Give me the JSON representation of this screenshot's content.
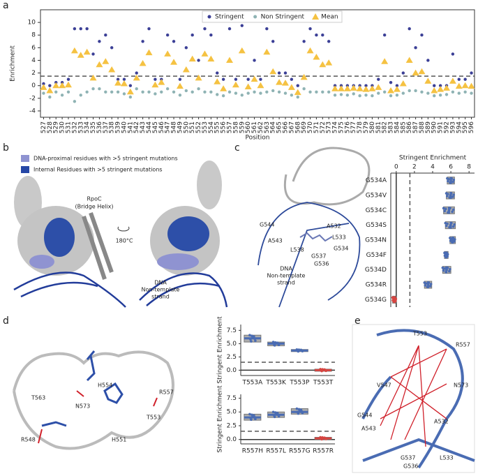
{
  "panel_labels": [
    "a",
    "b",
    "c",
    "d",
    "e"
  ],
  "chart_data": [
    {
      "type": "strip",
      "ylabel": "Enrichment",
      "xlabel": "Position",
      "threshold": 1.5,
      "ylim": [
        -5,
        12
      ],
      "yticks": [
        -4,
        -2,
        0,
        2,
        4,
        6,
        8,
        10
      ],
      "legend": "top-center",
      "categories": [
        "527",
        "528",
        "529",
        "530",
        "531",
        "532",
        "533",
        "534",
        "535",
        "536",
        "537",
        "538",
        "539",
        "540",
        "541",
        "542",
        "543",
        "544",
        "545",
        "546",
        "547",
        "548",
        "549",
        "550",
        "551",
        "552",
        "553",
        "554",
        "555",
        "556",
        "557",
        "558",
        "559",
        "560",
        "561",
        "562",
        "563",
        "564",
        "565",
        "566",
        "567",
        "568",
        "569",
        "570",
        "571",
        "572",
        "573",
        "574",
        "575",
        "576",
        "577",
        "578",
        "579",
        "580",
        "581",
        "582",
        "583",
        "584",
        "585",
        "586",
        "587",
        "588",
        "589",
        "590",
        "591",
        "592",
        "593",
        "594",
        "595",
        "596"
      ],
      "series": [
        {
          "name": "Stringent",
          "color": "#3b3f96",
          "marker": "circle",
          "values": [
            0.3,
            0,
            0.5,
            0.5,
            1,
            9,
            9,
            9,
            5,
            7,
            8,
            6,
            1,
            1,
            0,
            2,
            7,
            9,
            1,
            1,
            8,
            7,
            1,
            6,
            8,
            4,
            9,
            8,
            2,
            1,
            9,
            1,
            9.5,
            1,
            4,
            1,
            9,
            7,
            2,
            2,
            1,
            0,
            7,
            9,
            8,
            8,
            7,
            0,
            0,
            0,
            0,
            0,
            0,
            0,
            1,
            8,
            0.5,
            0,
            2,
            9,
            6,
            8,
            4,
            0,
            0,
            0,
            5,
            1,
            1,
            2
          ]
        },
        {
          "name": "Non Stringent",
          "color": "#8fb3b4",
          "marker": "circle",
          "values": [
            -1.2,
            -1.8,
            -1,
            -1.5,
            -1,
            -2.5,
            -1.5,
            -1,
            -0.5,
            -0.5,
            -1,
            -1,
            -1,
            -1.3,
            -1.8,
            -0.5,
            -1,
            -1,
            -1.3,
            -1,
            -0.5,
            -1,
            -1.5,
            -0.8,
            -1,
            -0.5,
            -1,
            -1,
            -1.4,
            -1.6,
            -1,
            -1.2,
            -1.5,
            -1.2,
            -1,
            -1.2,
            -1,
            -0.8,
            -1,
            -1.2,
            -1.5,
            -1.8,
            -0.5,
            -1,
            -1,
            -1,
            -1,
            -1.5,
            -1.4,
            -1.5,
            -1.3,
            -1.6,
            -1.5,
            -1.6,
            -1.2,
            -1,
            -1.6,
            -1.5,
            -1.2,
            -0.8,
            -0.8,
            -1,
            -1.2,
            -1.6,
            -1.5,
            -1.4,
            -1,
            -1.2,
            -1,
            -1.2
          ]
        },
        {
          "name": "Mean",
          "color": "#f5c242",
          "marker": "triangle",
          "values": [
            -0.3,
            -0.8,
            0,
            0,
            0.1,
            5.5,
            4.8,
            5.3,
            1.2,
            3.3,
            3.8,
            2.5,
            0.4,
            0.3,
            -1,
            1.2,
            3.5,
            5.2,
            0.1,
            0.5,
            5,
            3.7,
            -0.1,
            2.5,
            4.2,
            1.2,
            5,
            4.2,
            0.6,
            -0.5,
            4,
            0.1,
            5.5,
            -0.2,
            1,
            0,
            5.3,
            2.2,
            0.5,
            0.4,
            -0.3,
            -1.1,
            1.3,
            5.5,
            4.5,
            3.3,
            3.6,
            -0.5,
            -0.5,
            -0.5,
            -0.4,
            -0.5,
            -0.6,
            -0.5,
            -0.3,
            3.8,
            -0.8,
            -0.6,
            0.3,
            4,
            2,
            2.2,
            0.7,
            -0.8,
            -0.6,
            -0.4,
            0.7,
            -0.1,
            0,
            -0.1
          ]
        }
      ]
    },
    {
      "type": "box",
      "orientation": "horizontal",
      "xlabel": "Stringent Enrichment",
      "threshold": 1.5,
      "xlim": [
        -0.6,
        8.6
      ],
      "xticks": [
        0,
        2,
        4,
        6,
        8
      ],
      "categories": [
        "G534A",
        "G534V",
        "G534C",
        "G534S",
        "G534N",
        "G534F",
        "G534D",
        "G534R",
        "G534G"
      ],
      "q1": [
        5.6,
        5.5,
        5.2,
        5.4,
        5.9,
        5.3,
        5.1,
        3.1,
        -0.4
      ],
      "median": [
        6,
        6,
        5.8,
        6,
        6.2,
        5.5,
        5.5,
        3.5,
        -0.2
      ],
      "q3": [
        6.4,
        6.4,
        6.4,
        6.5,
        6.5,
        5.7,
        6,
        3.9,
        0
      ],
      "colors": [
        "#4a6cb3",
        "#4a6cb3",
        "#4a6cb3",
        "#4a6cb3",
        "#4a6cb3",
        "#4a6cb3",
        "#4a6cb3",
        "#4a6cb3",
        "#d64541"
      ]
    },
    {
      "type": "box",
      "orientation": "vertical",
      "ylabel": "Stringent Enrichment",
      "threshold": 1.5,
      "ylim": [
        -1,
        8.6
      ],
      "yticks": [
        {
          "value": 0,
          "label": "0.0"
        },
        {
          "value": 2.5,
          "label": "2.5"
        },
        {
          "value": 5,
          "label": "5.0"
        },
        {
          "value": 7.5,
          "label": "7.5"
        }
      ],
      "categories": [
        "T553A",
        "T553K",
        "T553P",
        "T553T"
      ],
      "q1": [
        5.3,
        4.6,
        3.5,
        -0.2
      ],
      "median": [
        6,
        5,
        3.7,
        0
      ],
      "q3": [
        6.6,
        5.3,
        3.9,
        0.2
      ],
      "colors": [
        "#4a6cb3",
        "#4a6cb3",
        "#4a6cb3",
        "#d64541"
      ]
    },
    {
      "type": "box",
      "orientation": "vertical",
      "ylabel": "Stringent Enrichment",
      "threshold": 1.5,
      "ylim": [
        -0.8,
        8.2
      ],
      "yticks": [
        {
          "value": 0,
          "label": "0.0"
        },
        {
          "value": 2.5,
          "label": "2.5"
        },
        {
          "value": 5,
          "label": "5.0"
        },
        {
          "value": 7.5,
          "label": "7.5"
        }
      ],
      "categories": [
        "R557H",
        "R557L",
        "R557G",
        "R557R"
      ],
      "q1": [
        3.5,
        4,
        4.6,
        0
      ],
      "median": [
        4,
        4.5,
        5,
        0.2
      ],
      "q3": [
        4.6,
        5,
        5.6,
        0.4
      ],
      "colors": [
        "#4a6cb3",
        "#4a6cb3",
        "#4a6cb3",
        "#d64541"
      ]
    }
  ],
  "structures": {
    "b": {
      "legend": [
        "DNA-proximal residues with >5 stringent mutations",
        "Internal Residues with >5 stringent mutations"
      ],
      "rpoc": [
        "RpoC",
        "(Bridge Helix)"
      ],
      "rotation": "180°C",
      "dna": [
        "DNA",
        "Non-template",
        "strand"
      ]
    },
    "c": {
      "residues": [
        "G544",
        "A543",
        "L538",
        "A532",
        "L533",
        "G534",
        "G537",
        "G536"
      ],
      "dna": [
        "DNA",
        "Non-template",
        "strand"
      ]
    },
    "d": {
      "residues": [
        "T563",
        "N573",
        "H554",
        "R557",
        "T553",
        "R548",
        "H551"
      ]
    },
    "e": {
      "residues": [
        "T553",
        "R557",
        "V547",
        "N573",
        "G544",
        "A543",
        "A532",
        "G537",
        "G536",
        "L533"
      ]
    }
  }
}
